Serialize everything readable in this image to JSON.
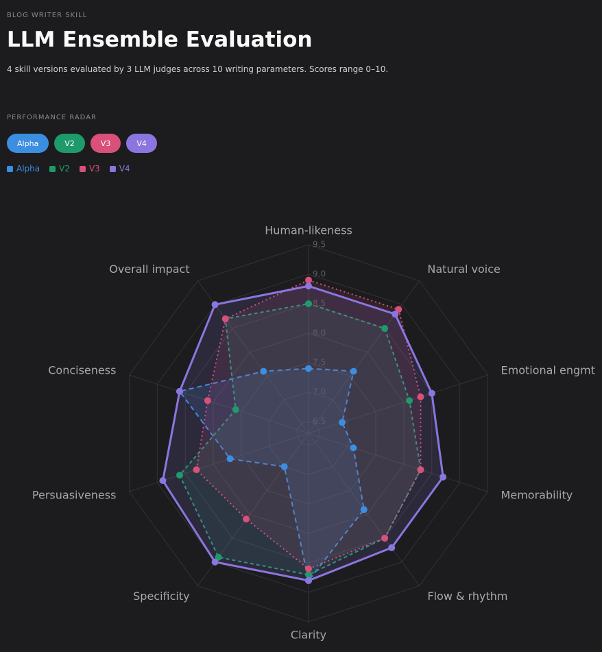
{
  "eyebrow": "BLOG WRITER SKILL",
  "title": "LLM Ensemble Evaluation",
  "subtitle": "4 skill versions evaluated by 3 LLM judges across 10 writing parameters. Scores range 0–10.",
  "section_label": "PERFORMANCE RADAR",
  "chart_data": {
    "type": "radar",
    "categories": [
      "Human-likeness",
      "Natural voice",
      "Emotional engmt",
      "Memorability",
      "Flow & rhythm",
      "Clarity",
      "Specificity",
      "Persuasiveness",
      "Conciseness",
      "Overall impact"
    ],
    "series": [
      {
        "name": "Alpha",
        "color": "#3b8ee0",
        "values": [
          7.4,
          7.6,
          6.9,
          7.1,
          7.9,
          8.8,
          7.0,
          7.7,
          8.6,
          7.6
        ]
      },
      {
        "name": "V2",
        "color": "#1f9a6b",
        "values": [
          8.5,
          8.5,
          8.1,
          8.3,
          8.5,
          8.7,
          8.9,
          8.6,
          7.6,
          8.7
        ]
      },
      {
        "name": "V3",
        "color": "#d9507a",
        "values": [
          8.9,
          8.9,
          8.3,
          8.3,
          8.5,
          8.6,
          8.1,
          8.3,
          8.1,
          8.7
        ]
      },
      {
        "name": "V4",
        "color": "#8b76e0",
        "values": [
          8.8,
          8.8,
          8.5,
          8.7,
          8.7,
          8.8,
          9.0,
          8.9,
          8.6,
          9.0
        ]
      }
    ],
    "rlim": [
      6.3,
      9.5
    ],
    "rticks": [
      6.5,
      {
        "value": 7,
        "label": "7.0"
      },
      7.5,
      {
        "value": 8,
        "label": "8.0"
      },
      8.5,
      {
        "value": 9,
        "label": "9.0"
      },
      9.5
    ],
    "grid": true
  }
}
